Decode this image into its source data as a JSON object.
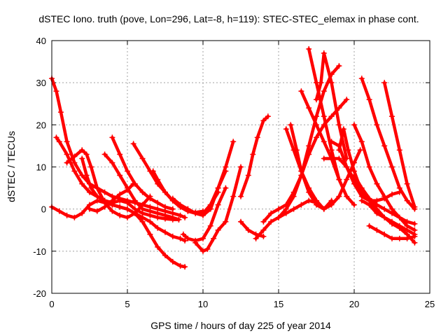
{
  "chart_data": {
    "type": "scatter",
    "title": "dSTEC Iono. truth (pove, Lon=296, Lat=-8, h=119): STEC-STEC_elemax in phase cont.",
    "xlabel": "GPS time / hours of day 225 of year 2014",
    "ylabel": "dSTEC  / TECUs",
    "xlim": [
      0,
      25
    ],
    "ylim": [
      -20,
      40
    ],
    "xticks": [
      0,
      5,
      10,
      15,
      20,
      25
    ],
    "yticks": [
      -20,
      -10,
      0,
      10,
      20,
      30,
      40
    ],
    "grid": true,
    "marker": "+",
    "color": "#ff0000",
    "series": [
      {
        "x": [
          0,
          0.3,
          0.6,
          1.0,
          1.5,
          2.0,
          2.5,
          3.0,
          3.5,
          4.0,
          4.5,
          5.0,
          5.5,
          6.0,
          6.5,
          7.0,
          7.5,
          8.0,
          8.5,
          8.8
        ],
        "y": [
          31,
          28,
          23,
          16,
          11,
          8,
          6,
          5,
          4,
          3,
          2.5,
          2,
          1.5,
          1,
          0.5,
          0,
          -0.5,
          -1,
          -1.5,
          -2
        ]
      },
      {
        "x": [
          0.3,
          0.5,
          1.0,
          1.5,
          2.0,
          2.5,
          3.0,
          3.5,
          4.0,
          4.5,
          5.0,
          5.5,
          6.0,
          6.5,
          7.0,
          7.5,
          8.0,
          8.5,
          8.8
        ],
        "y": [
          17,
          16,
          13,
          9,
          6,
          4,
          3,
          2,
          1,
          0.5,
          0,
          -1,
          -3,
          -6,
          -9,
          -11,
          -12.5,
          -13.5,
          -13.7
        ]
      },
      {
        "x": [
          0,
          0.5,
          1.0,
          1.5,
          2.0,
          2.5,
          3.0,
          3.5,
          4.0,
          4.5,
          5.0,
          5.5,
          6.0,
          6.5,
          7.0,
          7.5,
          8.0,
          8.5,
          8.8
        ],
        "y": [
          0.5,
          -0.5,
          -1.5,
          -2,
          -1,
          1,
          2,
          1.5,
          1,
          0.5,
          0,
          -1,
          -2,
          -3,
          -4.5,
          -5.5,
          -6.5,
          -7,
          -7.5
        ]
      },
      {
        "x": [
          1.0,
          1.5,
          2.0,
          2.3,
          2.6,
          3.0,
          3.5,
          4.0,
          4.5,
          5.0,
          5.5,
          6.0,
          6.5
        ],
        "y": [
          11,
          12.5,
          14,
          13,
          10,
          5,
          1.5,
          -0.5,
          -1.5,
          -2,
          -1,
          1,
          3
        ]
      },
      {
        "x": [
          2.0,
          2.3,
          2.6,
          3.0,
          3.5,
          4.0,
          4.5,
          5.0,
          5.5,
          6.0,
          6.5,
          7.0,
          7.5,
          8.0,
          8.4
        ],
        "y": [
          12,
          8,
          5,
          3,
          2,
          1.5,
          2,
          1.5,
          0,
          -1,
          -1.5,
          -2,
          -2.3,
          -2.5,
          -2.5
        ]
      },
      {
        "x": [
          3.5,
          4.0,
          4.5,
          5.0,
          5.5,
          6.0,
          6.5,
          7.0,
          7.5,
          8.0,
          8.4
        ],
        "y": [
          13,
          11,
          8,
          5,
          2,
          0,
          -0.5,
          -1,
          -1.5,
          -2,
          -2.5
        ]
      },
      {
        "x": [
          4.0,
          4.5,
          5.0,
          5.5,
          6.0,
          6.5,
          7.0,
          7.5,
          8.0
        ],
        "y": [
          17,
          13,
          9,
          6,
          4,
          2.5,
          1.5,
          0.5,
          0
        ]
      },
      {
        "x": [
          2.5,
          3.0,
          3.5,
          4.0,
          4.5,
          5.0,
          5.4
        ],
        "y": [
          0,
          -0.5,
          0.5,
          2,
          3.5,
          4.5,
          6
        ]
      },
      {
        "x": [
          5.4,
          6.0,
          6.5,
          7.0,
          7.5,
          8.0,
          8.5,
          9.0,
          9.5,
          10.0
        ],
        "y": [
          15.5,
          12,
          9,
          6,
          4,
          2,
          0.5,
          -0.5,
          -0.8,
          -0.5
        ]
      },
      {
        "x": [
          6.7,
          7.0,
          7.5,
          8.0,
          8.5,
          9.0,
          9.5,
          10.0,
          10.5,
          11.0
        ],
        "y": [
          9,
          7,
          4,
          2,
          0.5,
          -0.5,
          -1,
          -1,
          1,
          4
        ]
      },
      {
        "x": [
          8.0,
          8.5,
          9.0,
          9.5,
          10.0,
          10.5,
          11.0,
          11.5
        ],
        "y": [
          2.5,
          1,
          0,
          -1,
          -1.5,
          0,
          5,
          9
        ]
      },
      {
        "x": [
          9.0,
          9.5,
          10.0,
          10.5,
          11.0,
          11.5,
          12.0
        ],
        "y": [
          0,
          -1,
          -1,
          1,
          5,
          10,
          16
        ]
      },
      {
        "x": [
          8.7,
          9.0,
          9.5,
          10.0,
          10.5,
          11.0,
          11.5
        ],
        "y": [
          -6,
          -7,
          -7.5,
          -7,
          -4,
          1,
          5
        ]
      },
      {
        "x": [
          9.5,
          10.0,
          10.3,
          10.7,
          11.0,
          11.5,
          12.0,
          12.5
        ],
        "y": [
          -8,
          -10,
          -9.5,
          -7,
          -5,
          -3,
          3,
          10
        ]
      },
      {
        "x": [
          12.5,
          13.0,
          13.5,
          14.0
        ],
        "y": [
          -3,
          -5,
          -6,
          -6.5
        ]
      },
      {
        "x": [
          12.5,
          13.0,
          13.3,
          13.6,
          14.0,
          14.3
        ],
        "y": [
          3,
          8,
          13,
          17,
          21,
          22
        ]
      },
      {
        "x": [
          13.5,
          14.0,
          14.5,
          15.0,
          15.5,
          16.0,
          16.5,
          17.0,
          17.5,
          18.0
        ],
        "y": [
          -7,
          -5,
          -3,
          -2,
          -1,
          0,
          1,
          2,
          1.5,
          0
        ]
      },
      {
        "x": [
          14.0,
          14.5,
          15.0,
          15.5,
          16.0,
          16.5,
          17.0,
          17.5,
          18.0,
          18.5,
          19.0,
          19.5
        ],
        "y": [
          -3,
          -1,
          0,
          1,
          4,
          8,
          13,
          17,
          20,
          22,
          24,
          26
        ]
      },
      {
        "x": [
          15.0,
          15.5,
          16.0,
          16.5,
          17.0,
          17.5,
          18.0,
          18.5,
          19.0
        ],
        "y": [
          -2,
          0,
          3,
          8,
          15,
          22,
          28,
          32,
          34
        ]
      },
      {
        "x": [
          15.5,
          16.0,
          16.5,
          17.0,
          17.5,
          18.0,
          18.5,
          19.0,
          19.5,
          20.0,
          20.4
        ],
        "y": [
          19,
          14,
          9,
          5,
          2,
          0,
          1,
          3,
          7,
          11,
          14
        ]
      },
      {
        "x": [
          15.8,
          16.2,
          16.5,
          17.0,
          17.5,
          18.0,
          18.5
        ],
        "y": [
          20,
          14,
          9,
          4,
          1,
          0,
          2
        ]
      },
      {
        "x": [
          16.5,
          17.0,
          17.5,
          18.0,
          18.5,
          19.0
        ],
        "y": [
          28,
          24,
          20,
          16,
          12,
          7
        ]
      },
      {
        "x": [
          17.0,
          17.5,
          18.0,
          18.5,
          19.0,
          19.5,
          20.0
        ],
        "y": [
          38,
          30,
          22,
          14,
          7,
          3,
          1
        ]
      },
      {
        "x": [
          17.5,
          17.8,
          18.0,
          18.5,
          19.0,
          19.5
        ],
        "y": [
          26,
          30,
          37,
          30,
          20,
          12
        ]
      },
      {
        "x": [
          18.0,
          18.5,
          19.0,
          19.5,
          20.0,
          20.5,
          21.0,
          21.5,
          22.0,
          22.5,
          23.0
        ],
        "y": [
          12,
          12,
          12,
          10,
          6,
          3,
          2,
          2,
          2.5,
          3.5,
          4
        ]
      },
      {
        "x": [
          18.5,
          19.0,
          19.5,
          20.0,
          20.5,
          21.0,
          21.5,
          22.0,
          22.5,
          23.0,
          23.5,
          24.0
        ],
        "y": [
          16,
          15,
          10,
          7,
          4,
          2,
          0,
          -2,
          -3,
          -4,
          -5,
          -6
        ]
      },
      {
        "x": [
          19.0,
          19.3,
          19.6,
          20.0,
          20.5
        ],
        "y": [
          14,
          19,
          14,
          9,
          4
        ]
      },
      {
        "x": [
          20.0,
          20.5,
          21.0,
          21.5,
          22.0,
          22.5,
          23.0,
          23.5,
          24.0
        ],
        "y": [
          20,
          16,
          10,
          6,
          3,
          0,
          -2,
          -4,
          -5
        ]
      },
      {
        "x": [
          20.5,
          21.0,
          21.5,
          22.0,
          22.5,
          23.0,
          23.5,
          24.0
        ],
        "y": [
          31,
          26,
          20,
          15,
          10,
          5,
          2,
          0
        ]
      },
      {
        "x": [
          20.5,
          21.0,
          21.5,
          22.0,
          22.5,
          23.0,
          23.5,
          24.0
        ],
        "y": [
          2,
          1,
          -1,
          -2,
          -3.5,
          -4.5,
          -6,
          -8
        ]
      },
      {
        "x": [
          21.0,
          21.5,
          22.0,
          22.5,
          23.0,
          23.5,
          24.0
        ],
        "y": [
          -4,
          -5,
          -6,
          -7,
          -7,
          -7,
          -6.5
        ]
      },
      {
        "x": [
          20.0,
          20.5,
          21.0,
          21.5,
          22.0,
          22.5,
          23.0,
          23.5,
          24.0
        ],
        "y": [
          8,
          5,
          2.5,
          1,
          0,
          -1,
          -2,
          -3,
          -3.5
        ]
      },
      {
        "x": [
          22.0,
          22.5,
          23.0,
          23.5,
          24.0
        ],
        "y": [
          30,
          22,
          14,
          6,
          0.5
        ]
      }
    ]
  }
}
